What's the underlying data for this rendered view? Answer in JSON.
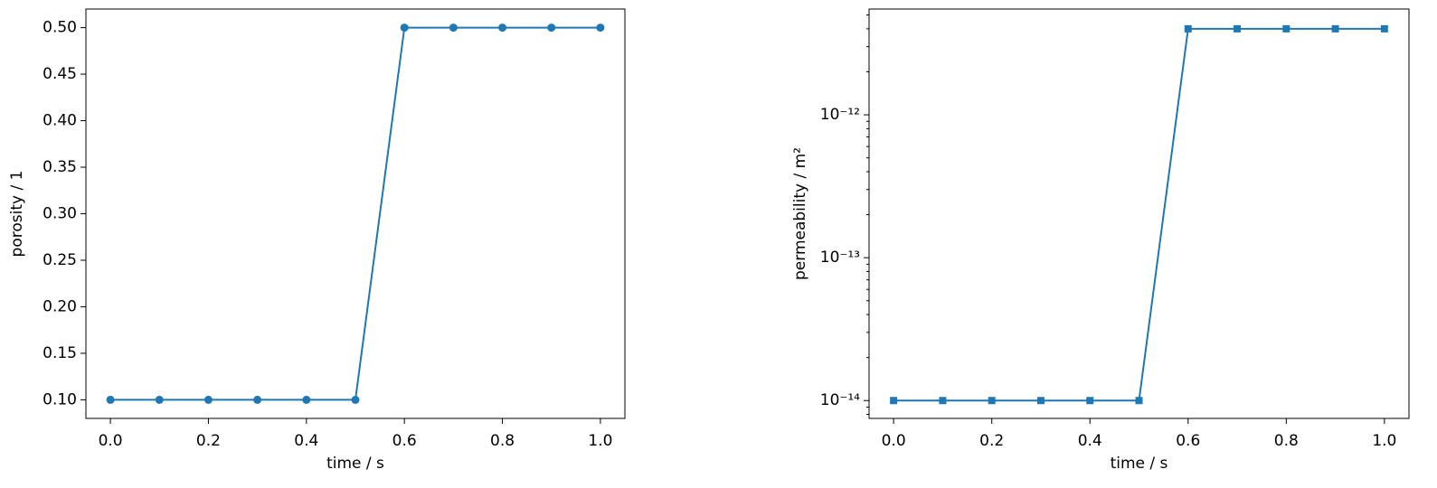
{
  "chart_data": [
    {
      "type": "line",
      "marker": "circle",
      "xlabel": "time / s",
      "ylabel": "porosity / 1",
      "x": [
        0,
        0.1,
        0.2,
        0.3,
        0.4,
        0.5,
        0.6,
        0.7,
        0.8,
        0.9,
        1.0
      ],
      "series": [
        {
          "color": "#1f77b4",
          "values": [
            0.1,
            0.1,
            0.1,
            0.1,
            0.1,
            0.1,
            0.5,
            0.5,
            0.5,
            0.5,
            0.5
          ]
        }
      ],
      "xlim": [
        -0.05,
        1.05
      ],
      "ylim": [
        0.08,
        0.52
      ],
      "xticks": [
        {
          "value": 0,
          "label": "0.0"
        },
        0.2,
        0.4,
        0.6,
        0.8,
        {
          "value": 1,
          "label": "1.0"
        }
      ],
      "yticks": [
        {
          "value": 0.1,
          "label": "0.10"
        },
        0.15,
        {
          "value": 0.2,
          "label": "0.20"
        },
        0.25,
        {
          "value": 0.3,
          "label": "0.30"
        },
        0.35,
        {
          "value": 0.4,
          "label": "0.40"
        },
        0.45,
        {
          "value": 0.5,
          "label": "0.50"
        }
      ],
      "log_y": false
    },
    {
      "type": "line",
      "marker": "square",
      "xlabel": "time / s",
      "ylabel": "permeability / m²",
      "x": [
        0,
        0.1,
        0.2,
        0.3,
        0.4,
        0.5,
        0.6,
        0.7,
        0.8,
        0.9,
        1.0
      ],
      "series": [
        {
          "color": "#1f77b4",
          "values": [
            1e-14,
            1e-14,
            1e-14,
            1e-14,
            1e-14,
            1e-14,
            4e-12,
            4e-12,
            4e-12,
            4e-12,
            4e-12
          ]
        }
      ],
      "xlim": [
        -0.05,
        1.05
      ],
      "ylim": [
        7.5e-15,
        5.5e-12
      ],
      "xticks": [
        {
          "value": 0,
          "label": "0.0"
        },
        0.2,
        0.4,
        0.6,
        0.8,
        {
          "value": 1,
          "label": "1.0"
        }
      ],
      "yticks": [
        {
          "value": 1e-14,
          "label": "10⁻¹⁴"
        },
        {
          "value": 1e-13,
          "label": "10⁻¹³"
        },
        {
          "value": 1e-12,
          "label": "10⁻¹²"
        }
      ],
      "yminorticks": [
        8e-15,
        9e-15,
        2e-14,
        3e-14,
        4e-14,
        5e-14,
        6e-14,
        7e-14,
        8e-14,
        9e-14,
        2e-13,
        3e-13,
        4e-13,
        5e-13,
        6e-13,
        7e-13,
        8e-13,
        9e-13,
        2e-12,
        3e-12,
        4e-12,
        5e-12
      ],
      "log_y": true
    }
  ]
}
